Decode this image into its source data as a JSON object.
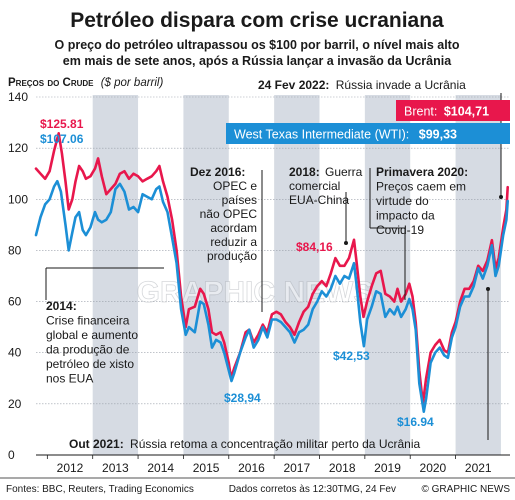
{
  "title": "Petróleo dispara com crise ucraniana",
  "subtitle_line1": "O preço do petróleo ultrapassou os $100 por barril, o nível mais alto",
  "subtitle_line2": "em mais de sete anos, após a Rússia lançar a invasão da Ucrânia",
  "axis_title": "Preços do Crude",
  "axis_unit": "($ por barril)",
  "brand_watermark": "GRAPHIC NEWS",
  "colors": {
    "brent": "#e8174c",
    "wti": "#1c8fd6",
    "band": "#d6dbe3",
    "text": "#1a1a1a"
  },
  "legend": {
    "brent_label": "Brent:",
    "brent_value": "$104,71",
    "wti_label": "West Texas Intermediate (WTI):",
    "wti_value": "$99,33"
  },
  "annotations": {
    "invasion": {
      "date": "24 Fev 2022:",
      "text": "Rússia invade a Ucrânia"
    },
    "y2014": {
      "head": "2014:",
      "lines": [
        "Crise financeira",
        "global e aumento",
        "da produção de",
        "petróleo de xisto",
        "nos EUA"
      ]
    },
    "dec2016": {
      "head": "Dez 2016:",
      "lines": [
        "OPEC e",
        "países",
        "não OPEC",
        "acordam",
        "reduzir a",
        "produção"
      ]
    },
    "y2018": {
      "head": "2018:",
      "lines": [
        "Guerra",
        "comercial",
        "EUA-China"
      ]
    },
    "spring2020": {
      "head": "Primavera 2020:",
      "lines": [
        "Preços caem em",
        "virtude do",
        "impacto da",
        "Covid-19"
      ]
    },
    "oct2021": {
      "head": "Out 2021:",
      "text": "Rússia retoma a concentração militar perto da Ucrânia"
    }
  },
  "value_labels": {
    "brent_max": "$125.81",
    "wti_max": "$107.06",
    "brent_2018": "$84,16",
    "wti_2016": "$28,94",
    "wti_2018": "$42,53",
    "wti_2020": "$16.94"
  },
  "footer": {
    "sources": "Fontes: BBC, Reuters, Trading Economics",
    "note": "Dados corretos às 12:30TMG, 24 Fev",
    "copyright": "© GRAPHIC NEWS"
  },
  "chart_data": {
    "type": "line",
    "title": "Petróleo dispara com crise ucraniana",
    "ylabel": "Preços do Crude ($ por barril)",
    "xlabel": "",
    "ylim": [
      0,
      140
    ],
    "xlim": [
      2011.75,
      2022.2
    ],
    "y_ticks": [
      0,
      20,
      40,
      60,
      80,
      100,
      120,
      140
    ],
    "x_ticks": [
      "2012",
      "2013",
      "2014",
      "2015",
      "2016",
      "2017",
      "2018",
      "2019",
      "2020",
      "2021"
    ],
    "grid": true,
    "legend_position": "top-right",
    "series": [
      {
        "name": "Brent",
        "color": "#e8174c",
        "points": [
          [
            2011.75,
            112
          ],
          [
            2011.85,
            110
          ],
          [
            2011.95,
            108
          ],
          [
            2012.05,
            111
          ],
          [
            2012.15,
            119
          ],
          [
            2012.25,
            125.81
          ],
          [
            2012.32,
            118
          ],
          [
            2012.4,
            107
          ],
          [
            2012.47,
            96
          ],
          [
            2012.55,
            100
          ],
          [
            2012.62,
            107
          ],
          [
            2012.7,
            113
          ],
          [
            2012.78,
            111
          ],
          [
            2012.85,
            108
          ],
          [
            2012.95,
            109
          ],
          [
            2013.05,
            112
          ],
          [
            2013.12,
            116
          ],
          [
            2013.2,
            109
          ],
          [
            2013.3,
            102
          ],
          [
            2013.4,
            104
          ],
          [
            2013.5,
            106
          ],
          [
            2013.6,
            110
          ],
          [
            2013.7,
            111
          ],
          [
            2013.8,
            108
          ],
          [
            2013.9,
            110
          ],
          [
            2014.0,
            109
          ],
          [
            2014.1,
            107
          ],
          [
            2014.2,
            108
          ],
          [
            2014.3,
            109
          ],
          [
            2014.4,
            111
          ],
          [
            2014.47,
            113
          ],
          [
            2014.55,
            107
          ],
          [
            2014.65,
            101
          ],
          [
            2014.75,
            92
          ],
          [
            2014.85,
            80
          ],
          [
            2014.95,
            62
          ],
          [
            2015.05,
            50
          ],
          [
            2015.12,
            57
          ],
          [
            2015.25,
            58
          ],
          [
            2015.37,
            65
          ],
          [
            2015.45,
            63
          ],
          [
            2015.55,
            57
          ],
          [
            2015.63,
            48
          ],
          [
            2015.72,
            47
          ],
          [
            2015.82,
            48
          ],
          [
            2015.9,
            44
          ],
          [
            2016.0,
            36
          ],
          [
            2016.05,
            30
          ],
          [
            2016.12,
            34
          ],
          [
            2016.25,
            40
          ],
          [
            2016.37,
            48
          ],
          [
            2016.45,
            49
          ],
          [
            2016.55,
            44
          ],
          [
            2016.65,
            47
          ],
          [
            2016.75,
            51
          ],
          [
            2016.85,
            48
          ],
          [
            2016.95,
            55
          ],
          [
            2017.05,
            56
          ],
          [
            2017.15,
            55
          ],
          [
            2017.25,
            52
          ],
          [
            2017.35,
            50
          ],
          [
            2017.45,
            47
          ],
          [
            2017.55,
            52
          ],
          [
            2017.65,
            56
          ],
          [
            2017.75,
            58
          ],
          [
            2017.85,
            63
          ],
          [
            2017.95,
            66
          ],
          [
            2018.05,
            68
          ],
          [
            2018.15,
            66
          ],
          [
            2018.25,
            71
          ],
          [
            2018.35,
            77
          ],
          [
            2018.45,
            74
          ],
          [
            2018.55,
            74
          ],
          [
            2018.65,
            77
          ],
          [
            2018.76,
            84.16
          ],
          [
            2018.82,
            75
          ],
          [
            2018.9,
            62
          ],
          [
            2018.97,
            54
          ],
          [
            2019.05,
            60
          ],
          [
            2019.15,
            66
          ],
          [
            2019.25,
            71
          ],
          [
            2019.35,
            72
          ],
          [
            2019.45,
            63
          ],
          [
            2019.55,
            62
          ],
          [
            2019.65,
            60
          ],
          [
            2019.72,
            65
          ],
          [
            2019.8,
            60
          ],
          [
            2019.9,
            63
          ],
          [
            2019.98,
            67
          ],
          [
            2020.05,
            62
          ],
          [
            2020.12,
            52
          ],
          [
            2020.2,
            33
          ],
          [
            2020.28,
            20
          ],
          [
            2020.35,
            30
          ],
          [
            2020.45,
            40
          ],
          [
            2020.55,
            43
          ],
          [
            2020.65,
            45
          ],
          [
            2020.75,
            41
          ],
          [
            2020.83,
            40
          ],
          [
            2020.92,
            48
          ],
          [
            2021.0,
            52
          ],
          [
            2021.1,
            60
          ],
          [
            2021.2,
            65
          ],
          [
            2021.3,
            65
          ],
          [
            2021.4,
            68
          ],
          [
            2021.5,
            74
          ],
          [
            2021.6,
            72
          ],
          [
            2021.7,
            76
          ],
          [
            2021.8,
            84
          ],
          [
            2021.88,
            73
          ],
          [
            2021.95,
            77
          ],
          [
            2022.05,
            89
          ],
          [
            2022.12,
            96
          ],
          [
            2022.15,
            104.71
          ]
        ]
      },
      {
        "name": "West Texas Intermediate (WTI)",
        "color": "#1c8fd6",
        "points": [
          [
            2011.75,
            86
          ],
          [
            2011.85,
            93
          ],
          [
            2011.95,
            98
          ],
          [
            2012.05,
            100
          ],
          [
            2012.15,
            105
          ],
          [
            2012.22,
            107.06
          ],
          [
            2012.3,
            103
          ],
          [
            2012.4,
            90
          ],
          [
            2012.47,
            80
          ],
          [
            2012.55,
            87
          ],
          [
            2012.62,
            93
          ],
          [
            2012.7,
            95
          ],
          [
            2012.78,
            88
          ],
          [
            2012.85,
            86
          ],
          [
            2012.95,
            89
          ],
          [
            2013.05,
            95
          ],
          [
            2013.12,
            92
          ],
          [
            2013.2,
            91
          ],
          [
            2013.3,
            92
          ],
          [
            2013.4,
            95
          ],
          [
            2013.5,
            104
          ],
          [
            2013.6,
            106
          ],
          [
            2013.7,
            103
          ],
          [
            2013.8,
            96
          ],
          [
            2013.9,
            97
          ],
          [
            2014.0,
            95
          ],
          [
            2014.1,
            102
          ],
          [
            2014.2,
            101
          ],
          [
            2014.3,
            100
          ],
          [
            2014.4,
            104
          ],
          [
            2014.47,
            105
          ],
          [
            2014.55,
            99
          ],
          [
            2014.65,
            95
          ],
          [
            2014.75,
            85
          ],
          [
            2014.85,
            75
          ],
          [
            2014.95,
            57
          ],
          [
            2015.05,
            47
          ],
          [
            2015.12,
            50
          ],
          [
            2015.25,
            48
          ],
          [
            2015.37,
            60
          ],
          [
            2015.45,
            59
          ],
          [
            2015.55,
            51
          ],
          [
            2015.63,
            42
          ],
          [
            2015.72,
            45
          ],
          [
            2015.82,
            44
          ],
          [
            2015.9,
            40
          ],
          [
            2016.0,
            33
          ],
          [
            2016.06,
            28.94
          ],
          [
            2016.12,
            32
          ],
          [
            2016.25,
            40
          ],
          [
            2016.37,
            46
          ],
          [
            2016.45,
            49
          ],
          [
            2016.55,
            42
          ],
          [
            2016.65,
            45
          ],
          [
            2016.75,
            50
          ],
          [
            2016.85,
            46
          ],
          [
            2016.95,
            53
          ],
          [
            2017.05,
            53
          ],
          [
            2017.15,
            52
          ],
          [
            2017.25,
            50
          ],
          [
            2017.35,
            48
          ],
          [
            2017.45,
            44
          ],
          [
            2017.55,
            48
          ],
          [
            2017.65,
            49
          ],
          [
            2017.75,
            51
          ],
          [
            2017.85,
            57
          ],
          [
            2017.95,
            60
          ],
          [
            2018.05,
            64
          ],
          [
            2018.15,
            62
          ],
          [
            2018.25,
            65
          ],
          [
            2018.35,
            70
          ],
          [
            2018.45,
            67
          ],
          [
            2018.55,
            70
          ],
          [
            2018.65,
            69
          ],
          [
            2018.76,
            75
          ],
          [
            2018.82,
            66
          ],
          [
            2018.9,
            52
          ],
          [
            2018.98,
            42.53
          ],
          [
            2019.05,
            53
          ],
          [
            2019.15,
            58
          ],
          [
            2019.25,
            64
          ],
          [
            2019.35,
            63
          ],
          [
            2019.45,
            54
          ],
          [
            2019.55,
            57
          ],
          [
            2019.65,
            55
          ],
          [
            2019.72,
            58
          ],
          [
            2019.8,
            54
          ],
          [
            2019.9,
            57
          ],
          [
            2019.98,
            61
          ],
          [
            2020.05,
            57
          ],
          [
            2020.12,
            49
          ],
          [
            2020.2,
            28
          ],
          [
            2020.3,
            16.94
          ],
          [
            2020.35,
            22
          ],
          [
            2020.45,
            36
          ],
          [
            2020.55,
            40
          ],
          [
            2020.65,
            42
          ],
          [
            2020.75,
            39
          ],
          [
            2020.83,
            38
          ],
          [
            2020.92,
            46
          ],
          [
            2021.0,
            50
          ],
          [
            2021.1,
            58
          ],
          [
            2021.2,
            62
          ],
          [
            2021.3,
            62
          ],
          [
            2021.4,
            66
          ],
          [
            2021.5,
            73
          ],
          [
            2021.6,
            69
          ],
          [
            2021.7,
            74
          ],
          [
            2021.8,
            82
          ],
          [
            2021.88,
            70
          ],
          [
            2021.95,
            74
          ],
          [
            2022.05,
            86
          ],
          [
            2022.12,
            92
          ],
          [
            2022.15,
            99.33
          ]
        ]
      }
    ]
  }
}
